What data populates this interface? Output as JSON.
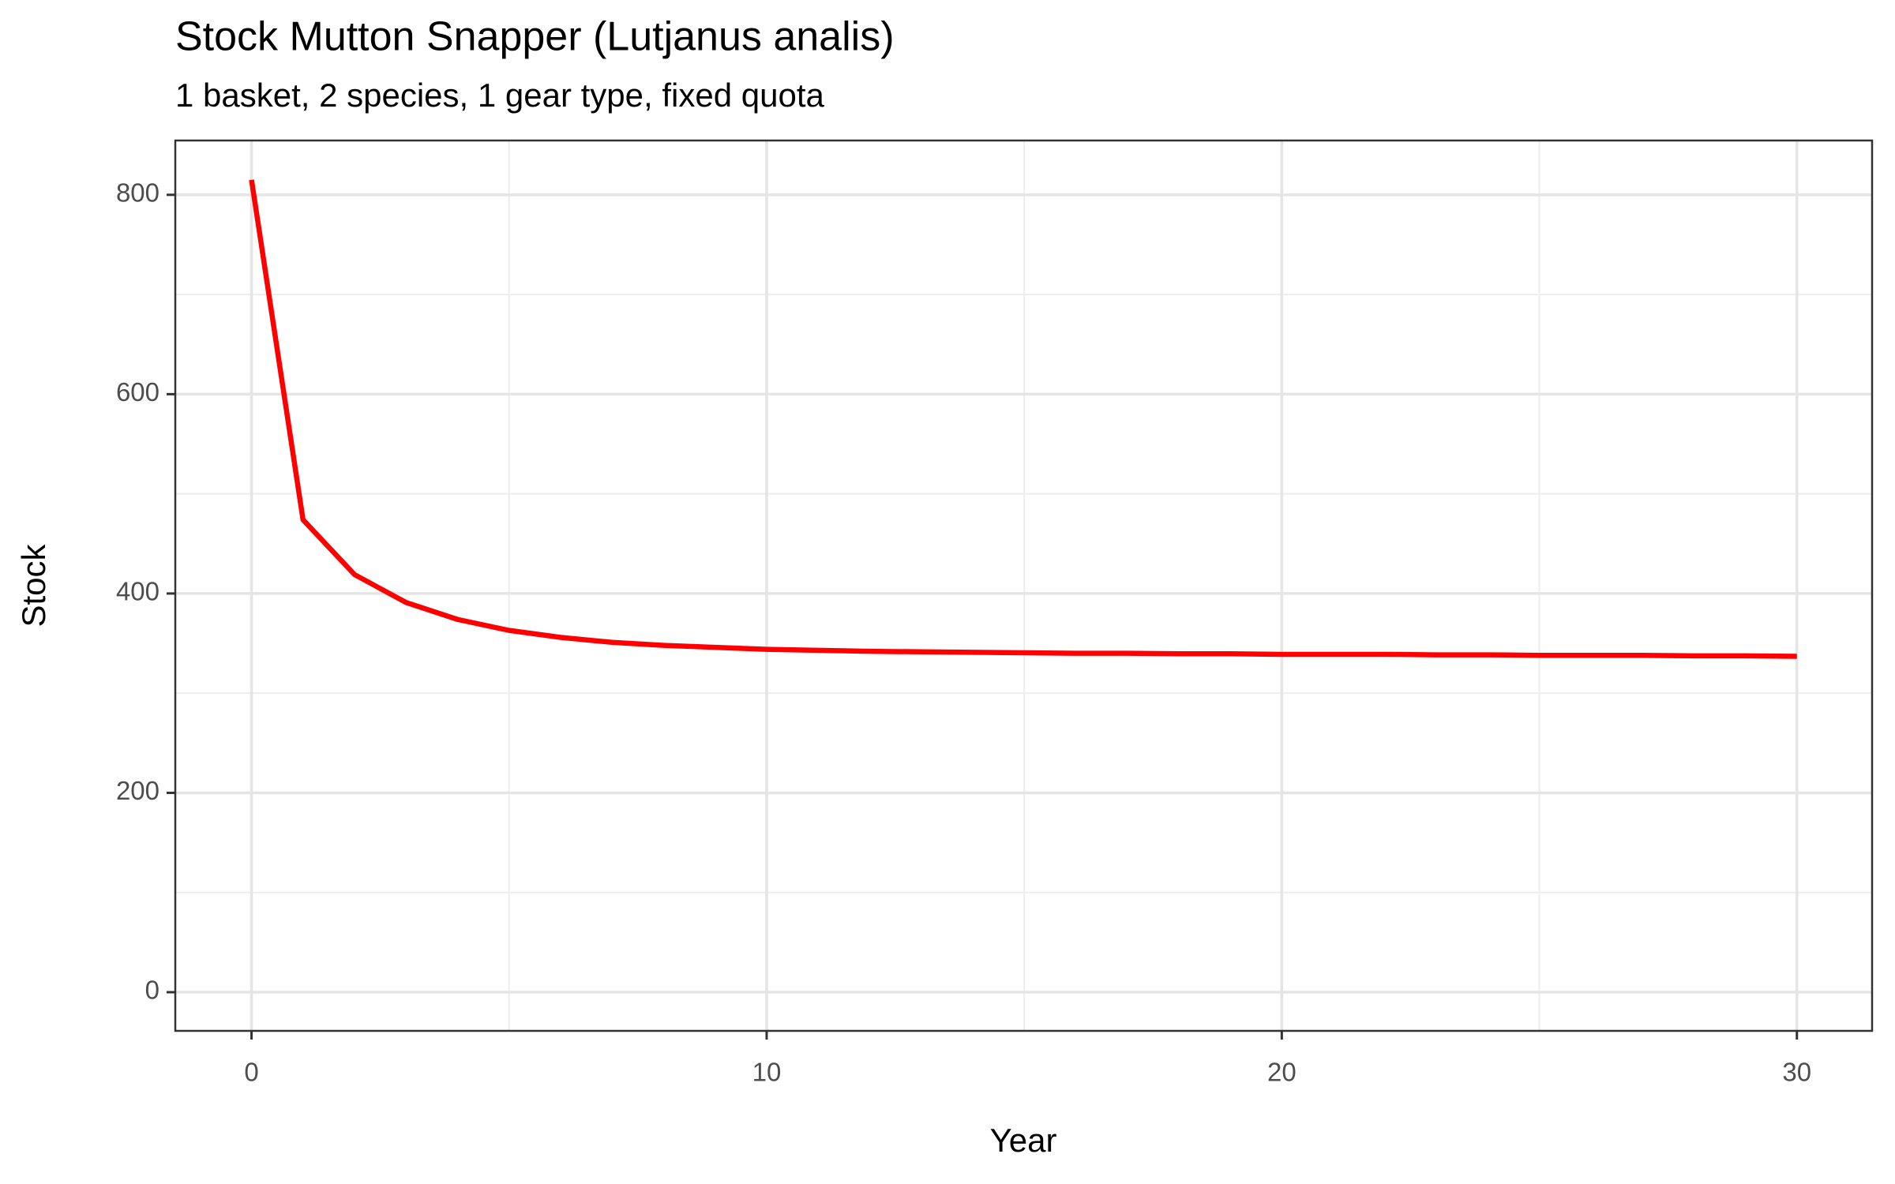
{
  "chart_data": {
    "type": "line",
    "title": "Stock Mutton Snapper (Lutjanus analis)",
    "subtitle": "1 basket, 2 species, 1 gear type, fixed quota",
    "x_label": "Year",
    "y_label": "Stock",
    "x": [
      0,
      1,
      2,
      3,
      4,
      5,
      6,
      7,
      8,
      9,
      10,
      11,
      12,
      13,
      14,
      15,
      16,
      17,
      18,
      19,
      20,
      21,
      22,
      23,
      24,
      25,
      26,
      27,
      28,
      29,
      30
    ],
    "series": [
      {
        "name": "Stock",
        "color": "#ff0000",
        "values": [
          815,
          474,
          419,
          391,
          374,
          363,
          356,
          351,
          348,
          346,
          344,
          343,
          342,
          341.5,
          341,
          340.5,
          340,
          340,
          339.5,
          339.5,
          339,
          339,
          339,
          338.5,
          338.5,
          338,
          338,
          338,
          337.5,
          337.5,
          337
        ]
      }
    ],
    "xlim": [
      -1.48,
      31.46
    ],
    "ylim": [
      -38.8,
      854.5
    ],
    "xticks": [
      0,
      10,
      20,
      30
    ],
    "yticks": [
      0,
      200,
      400,
      600,
      800
    ],
    "minor_xticks": [
      5,
      15,
      25
    ],
    "minor_yticks": [
      100,
      300,
      500,
      700
    ],
    "grid": true
  }
}
